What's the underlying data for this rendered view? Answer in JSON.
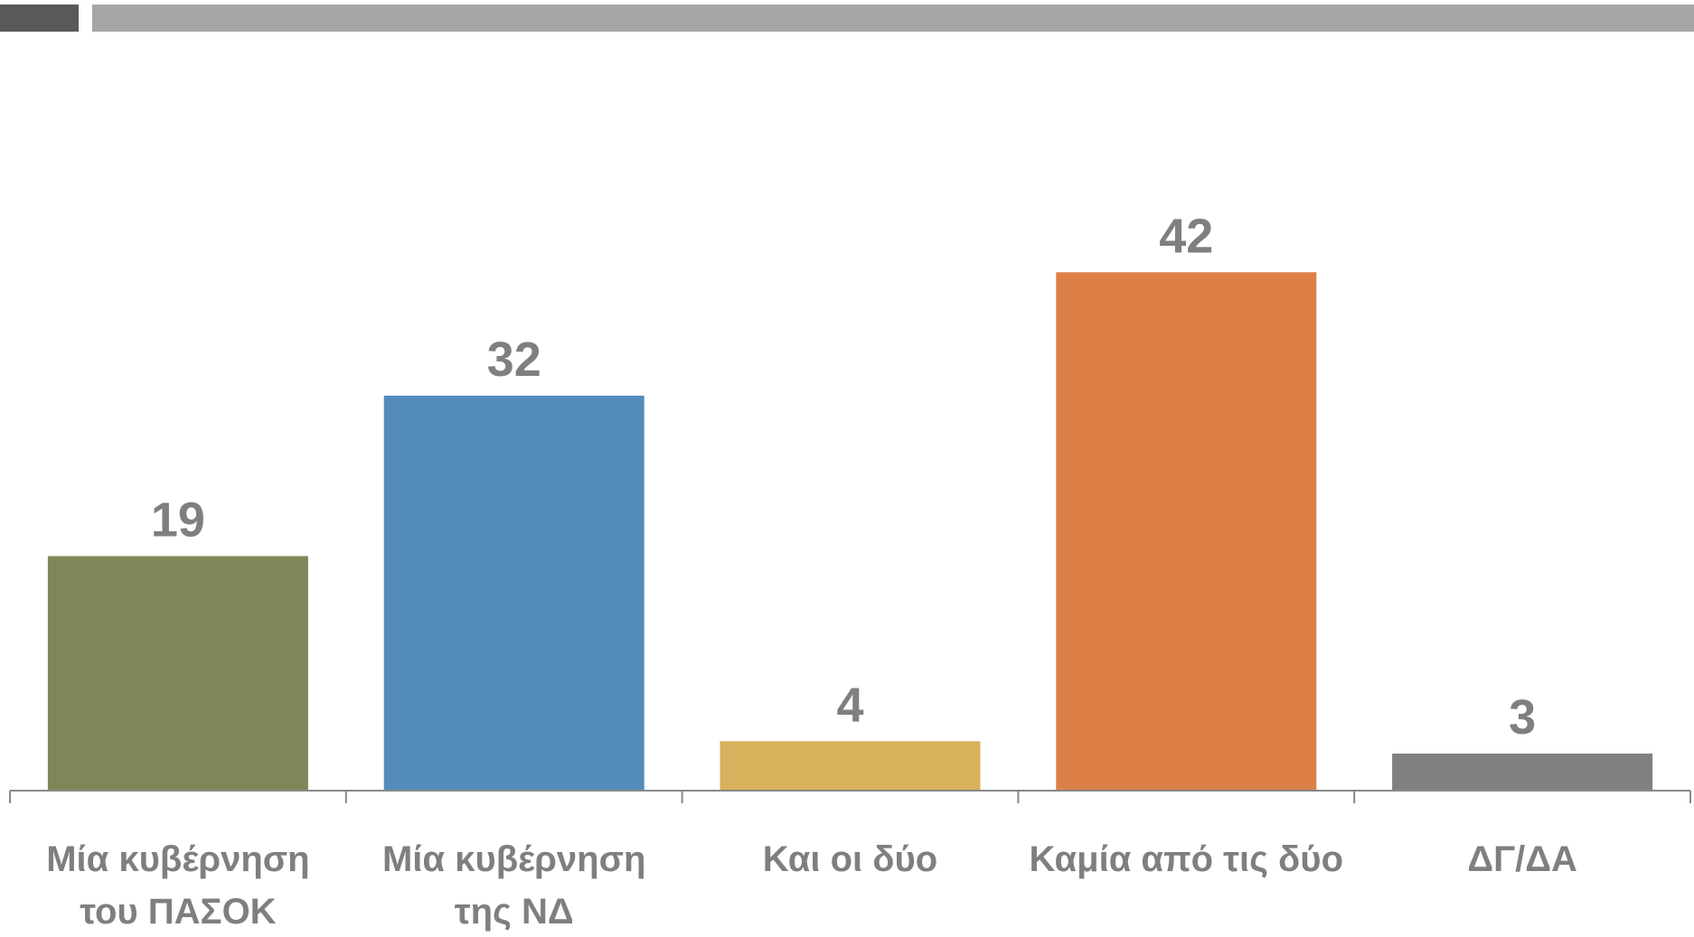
{
  "chart_data": {
    "type": "bar",
    "categories": [
      "Μία κυβέρνηση\nτου ΠΑΣΟΚ",
      "Μία κυβέρνηση\nτης ΝΔ",
      "Και οι δύο",
      "Καμία από τις δύο",
      "ΔΓ/ΔΑ"
    ],
    "values": [
      19,
      32,
      4,
      42,
      3
    ],
    "colors": [
      "#7f8658",
      "#538bba",
      "#d9b05c",
      "#dd8048",
      "#808080"
    ],
    "ylim": [
      0,
      50
    ]
  }
}
